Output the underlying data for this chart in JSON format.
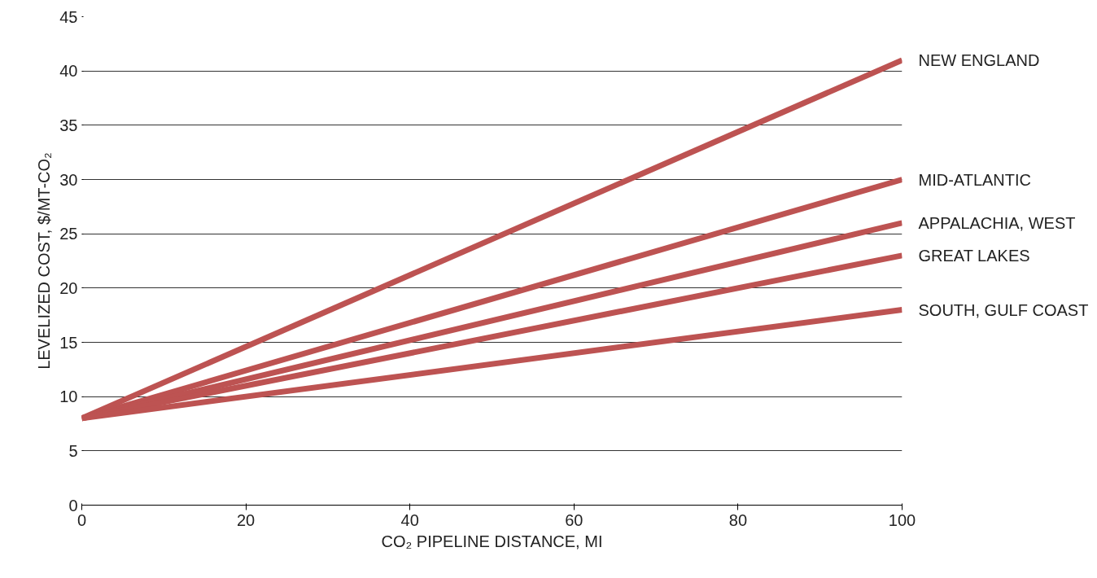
{
  "chart_data": {
    "type": "line",
    "xlabel": "CO₂ PIPELINE DISTANCE, MI",
    "ylabel": "LEVELIZED COST, $/MT-CO₂",
    "x": [
      0,
      100
    ],
    "xlim": [
      0,
      100
    ],
    "xticks": [
      0,
      20,
      40,
      60,
      80,
      100
    ],
    "ylim": [
      0,
      45
    ],
    "yticks": [
      0,
      5,
      10,
      15,
      20,
      25,
      30,
      35,
      40,
      45
    ],
    "grid": "y",
    "legend": false,
    "marker": "none",
    "line_style": "solid",
    "series": [
      {
        "name": "NEW ENGLAND",
        "color": "#bd5352",
        "values": [
          8,
          41
        ]
      },
      {
        "name": "MID-ATLANTIC",
        "color": "#bd5352",
        "values": [
          8,
          30
        ]
      },
      {
        "name": "APPALACHIA, WEST",
        "color": "#bd5352",
        "values": [
          8,
          26
        ]
      },
      {
        "name": "GREAT LAKES",
        "color": "#bd5352",
        "values": [
          8,
          23
        ]
      },
      {
        "name": "SOUTH, GULF COAST",
        "color": "#bd5352",
        "values": [
          8,
          18
        ]
      }
    ]
  }
}
